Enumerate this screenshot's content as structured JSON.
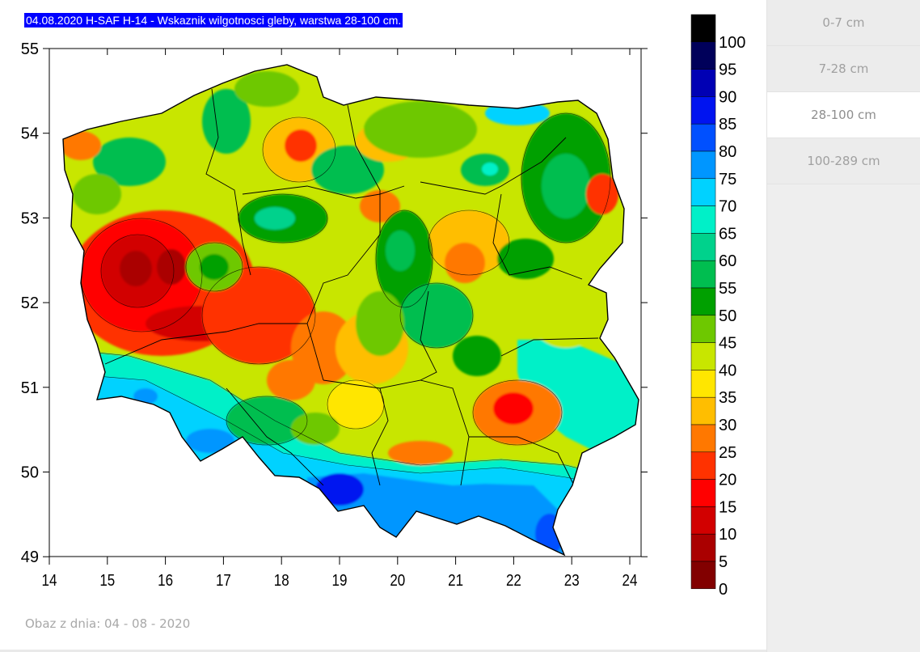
{
  "map": {
    "title": "04.08.2020 H-SAF H-14 - Wskaznik wilgotnosci gleby, warstwa 28-100 cm.",
    "x_ticks": [
      "14",
      "15",
      "16",
      "17",
      "18",
      "19",
      "20",
      "21",
      "22",
      "23",
      "24"
    ],
    "y_ticks": [
      "55",
      "54",
      "53",
      "52",
      "51",
      "50",
      "49"
    ],
    "colorbar": {
      "labels": [
        "100",
        "95",
        "90",
        "85",
        "80",
        "75",
        "70",
        "65",
        "60",
        "55",
        "50",
        "45",
        "40",
        "35",
        "30",
        "25",
        "20",
        "15",
        "10",
        "5",
        "0"
      ],
      "colors": [
        "#000000",
        "#00005a",
        "#0000b4",
        "#0014f0",
        "#0050ff",
        "#0096ff",
        "#00d2ff",
        "#00f0c8",
        "#00d28c",
        "#00be50",
        "#00a000",
        "#6ec800",
        "#c8e600",
        "#ffe600",
        "#ffbe00",
        "#ff7800",
        "#ff3200",
        "#ff0000",
        "#d20000",
        "#aa0000",
        "#820000"
      ]
    },
    "region": "Polska"
  },
  "caption": "Obaz z dnia: 04 - 08 - 2020",
  "tabs": [
    {
      "label": "0-7 cm",
      "active": false
    },
    {
      "label": "7-28 cm",
      "active": false
    },
    {
      "label": "28-100 cm",
      "active": true
    },
    {
      "label": "100-289 cm",
      "active": false
    }
  ]
}
